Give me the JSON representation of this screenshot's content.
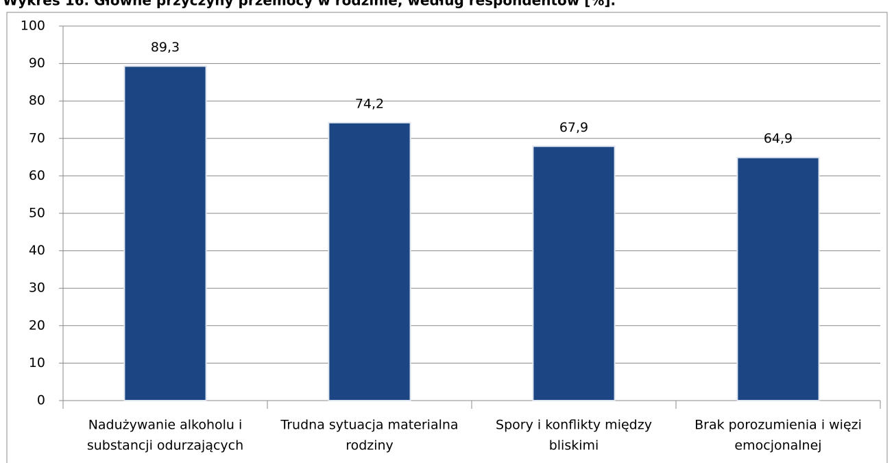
{
  "chart_data": {
    "type": "bar",
    "title": "Wykres 16. Główne przyczyny przemocy w rodzinie, według respondentów [%].",
    "categories": [
      [
        "Nadużywanie alkoholu i",
        "substancji odurzających"
      ],
      [
        "Trudna sytuacja materialna",
        "rodziny"
      ],
      [
        "Spory i konflikty między",
        "bliskimi"
      ],
      [
        "Brak porozumienia i więzi",
        "emocjonalnej"
      ]
    ],
    "values": [
      89.3,
      74.2,
      67.9,
      64.9
    ],
    "value_labels": [
      "89,3",
      "74,2",
      "67,9",
      "64,9"
    ],
    "color": "#1b4583",
    "ylim": [
      0,
      100
    ],
    "yticks": [
      0,
      10,
      20,
      30,
      40,
      50,
      60,
      70,
      80,
      90,
      100
    ],
    "grid": true
  }
}
